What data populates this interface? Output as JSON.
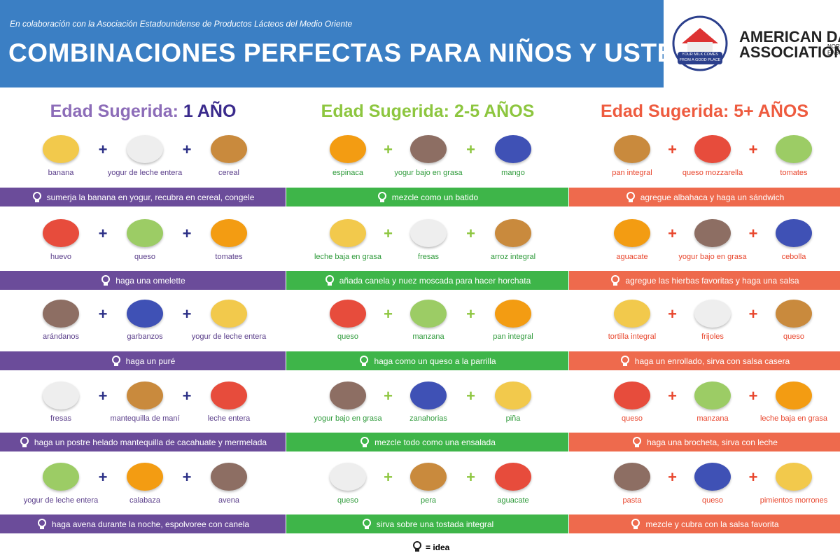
{
  "header": {
    "subtitle": "En colaboración con la Asociación Estadounidense de Productos Lácteos del Medio Oriente",
    "title": "COMBINACIONES PERFECTAS PARA NIÑOS Y USTED"
  },
  "logo": {
    "badge": "YOUR MILK COMES FROM A GOOD PLACE",
    "name_line1": "AMERICAN DAIRY",
    "name_line2": "ASSOCIATION",
    "region": "NORTH EAST"
  },
  "columns": [
    {
      "label": "Edad Sugerida:",
      "age": "1 AÑO",
      "rows": [
        {
          "items": [
            "banana",
            "yogur de leche entera",
            "cereal"
          ],
          "idea": "sumerja la banana en yogur, recubra en cereal, congele"
        },
        {
          "items": [
            "huevo",
            "queso",
            "tomates"
          ],
          "idea": "haga una omelette"
        },
        {
          "items": [
            "arándanos",
            "garbanzos",
            "yogur de leche entera"
          ],
          "idea": "haga un puré"
        },
        {
          "items": [
            "fresas",
            "mantequilla de maní",
            "leche entera"
          ],
          "idea": "haga un postre helado mantequilla de cacahuate y mermelada"
        },
        {
          "items": [
            "yogur de leche entera",
            "calabaza",
            "avena"
          ],
          "idea": "haga avena durante la noche, espolvoree con canela"
        }
      ]
    },
    {
      "label": "Edad Sugerida:",
      "age": "2-5 AÑOS",
      "rows": [
        {
          "items": [
            "espinaca",
            "yogur bajo en grasa",
            "mango"
          ],
          "idea": "mezcle como un batido"
        },
        {
          "items": [
            "leche baja en grasa",
            "fresas",
            "arroz integral"
          ],
          "idea": "añada canela y nuez moscada para hacer horchata"
        },
        {
          "items": [
            "queso",
            "manzana",
            "pan integral"
          ],
          "idea": "haga como un queso a la parrilla"
        },
        {
          "items": [
            "yogur bajo en grasa",
            "zanahorias",
            "piña"
          ],
          "idea": "mezcle todo como una ensalada"
        },
        {
          "items": [
            "queso",
            "pera",
            "aguacate"
          ],
          "idea": "sirva sobre una tostada integral"
        }
      ]
    },
    {
      "label": "Edad Sugerida:",
      "age": "5+ AÑOS",
      "rows": [
        {
          "items": [
            "pan integral",
            "queso mozzarella",
            "tomates"
          ],
          "idea": "agregue albahaca y haga un sándwich"
        },
        {
          "items": [
            "aguacate",
            "yogur bajo en grasa",
            "cebolla"
          ],
          "idea": "agregue las hierbas favoritas y haga una salsa"
        },
        {
          "items": [
            "tortilla integral",
            "frijoles",
            "queso"
          ],
          "idea": "haga un enrollado, sirva con salsa casera"
        },
        {
          "items": [
            "queso",
            "manzana",
            "leche baja en grasa"
          ],
          "idea": "haga una brocheta, sirva con leche"
        },
        {
          "items": [
            "pasta",
            "queso",
            "pimientos morrones"
          ],
          "idea": "mezcle y cubra con la salsa favorita"
        }
      ]
    }
  ],
  "legend": "= idea"
}
